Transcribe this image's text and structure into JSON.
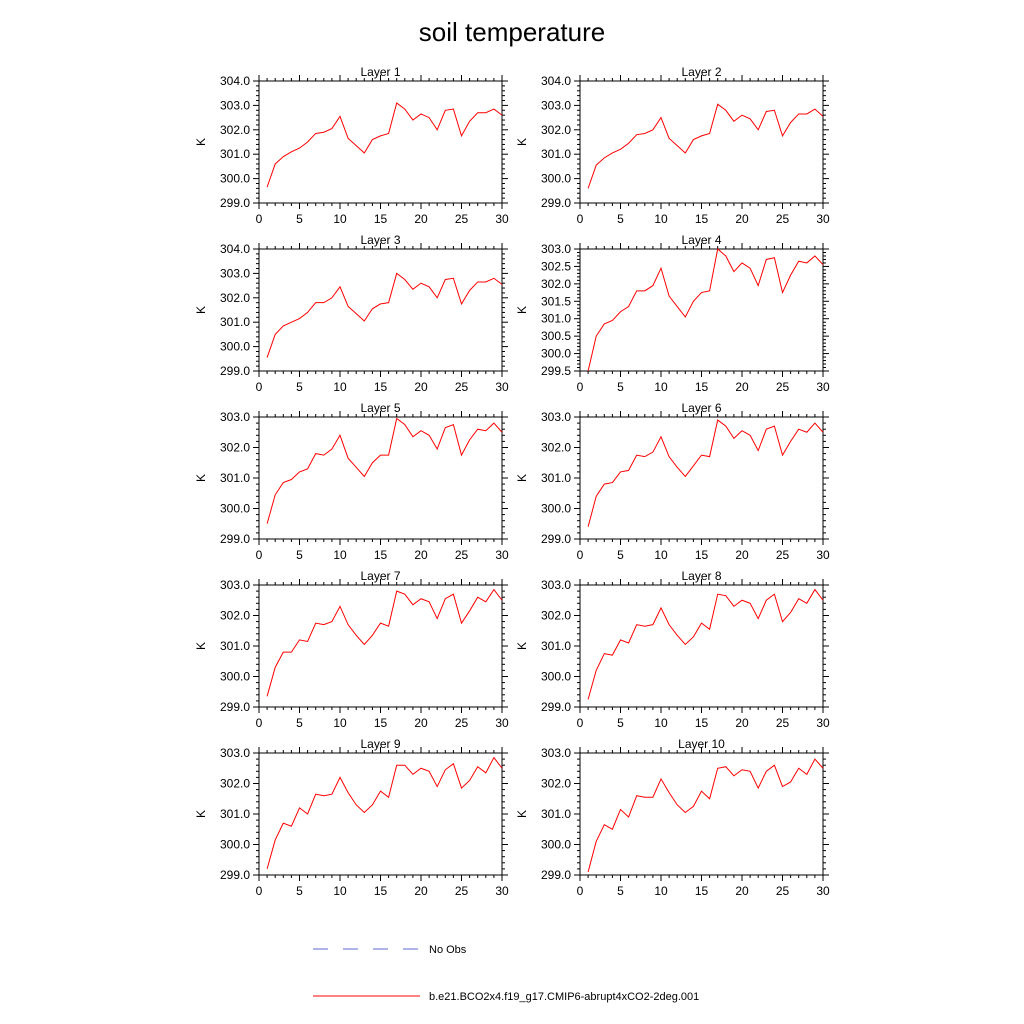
{
  "figure": {
    "title": "soil temperature",
    "legend": [
      {
        "label": "No Obs",
        "color": "#5b6bd1",
        "dash": true
      },
      {
        "label": "b.e21.BCO2x4.f19_g17.CMIP6-abrupt4xCO2-2deg.001",
        "color": "#ff0000",
        "dash": false
      }
    ]
  },
  "chart_data": [
    {
      "type": "line",
      "title": "Layer 1",
      "ylabel": "K",
      "xlim": [
        0,
        30
      ],
      "ylim": [
        299.0,
        304.0
      ],
      "xticks": [
        0,
        5,
        10,
        15,
        20,
        25,
        30
      ],
      "yticks": [
        299.0,
        300.0,
        301.0,
        302.0,
        303.0,
        304.0
      ],
      "series": [
        {
          "color": "#ff0000",
          "x": [
            1,
            2,
            3,
            4,
            5,
            6,
            7,
            8,
            9,
            10,
            11,
            12,
            13,
            14,
            15,
            16,
            17,
            18,
            19,
            20,
            21,
            22,
            23,
            24,
            25,
            26,
            27,
            28,
            29,
            30
          ],
          "y": [
            299.65,
            300.6,
            300.9,
            301.1,
            301.25,
            301.5,
            301.85,
            301.9,
            302.05,
            302.55,
            301.65,
            301.35,
            301.05,
            301.6,
            301.75,
            301.85,
            303.1,
            302.85,
            302.4,
            302.65,
            302.5,
            302.0,
            302.8,
            302.85,
            301.75,
            302.35,
            302.7,
            302.7,
            302.85,
            302.6
          ]
        }
      ]
    },
    {
      "type": "line",
      "title": "Layer 2",
      "ylabel": "K",
      "xlim": [
        0,
        30
      ],
      "ylim": [
        299.0,
        304.0
      ],
      "xticks": [
        0,
        5,
        10,
        15,
        20,
        25,
        30
      ],
      "yticks": [
        299.0,
        300.0,
        301.0,
        302.0,
        303.0,
        304.0
      ],
      "series": [
        {
          "color": "#ff0000",
          "x": [
            1,
            2,
            3,
            4,
            5,
            6,
            7,
            8,
            9,
            10,
            11,
            12,
            13,
            14,
            15,
            16,
            17,
            18,
            19,
            20,
            21,
            22,
            23,
            24,
            25,
            26,
            27,
            28,
            29,
            30
          ],
          "y": [
            299.6,
            300.55,
            300.85,
            301.05,
            301.2,
            301.45,
            301.8,
            301.85,
            302.0,
            302.5,
            301.65,
            301.35,
            301.05,
            301.6,
            301.75,
            301.85,
            303.05,
            302.8,
            302.35,
            302.6,
            302.45,
            302.0,
            302.75,
            302.8,
            301.75,
            302.3,
            302.65,
            302.65,
            302.85,
            302.55
          ]
        }
      ]
    },
    {
      "type": "line",
      "title": "Layer 3",
      "ylabel": "K",
      "xlim": [
        0,
        30
      ],
      "ylim": [
        299.0,
        304.0
      ],
      "xticks": [
        0,
        5,
        10,
        15,
        20,
        25,
        30
      ],
      "yticks": [
        299.0,
        300.0,
        301.0,
        302.0,
        303.0,
        304.0
      ],
      "series": [
        {
          "color": "#ff0000",
          "x": [
            1,
            2,
            3,
            4,
            5,
            6,
            7,
            8,
            9,
            10,
            11,
            12,
            13,
            14,
            15,
            16,
            17,
            18,
            19,
            20,
            21,
            22,
            23,
            24,
            25,
            26,
            27,
            28,
            29,
            30
          ],
          "y": [
            299.55,
            300.5,
            300.85,
            301.0,
            301.15,
            301.4,
            301.8,
            301.8,
            302.0,
            302.45,
            301.65,
            301.35,
            301.05,
            301.55,
            301.75,
            301.8,
            303.0,
            302.75,
            302.35,
            302.6,
            302.45,
            302.0,
            302.75,
            302.8,
            301.75,
            302.3,
            302.65,
            302.65,
            302.8,
            302.55
          ]
        }
      ]
    },
    {
      "type": "line",
      "title": "Layer 4",
      "ylabel": "K",
      "xlim": [
        0,
        30
      ],
      "ylim": [
        299.5,
        303.0
      ],
      "xticks": [
        0,
        5,
        10,
        15,
        20,
        25,
        30
      ],
      "yticks": [
        299.5,
        300.0,
        300.5,
        301.0,
        301.5,
        302.0,
        302.5,
        303.0
      ],
      "series": [
        {
          "color": "#ff0000",
          "x": [
            1,
            2,
            3,
            4,
            5,
            6,
            7,
            8,
            9,
            10,
            11,
            12,
            13,
            14,
            15,
            16,
            17,
            18,
            19,
            20,
            21,
            22,
            23,
            24,
            25,
            26,
            27,
            28,
            29,
            30
          ],
          "y": [
            299.5,
            300.5,
            300.85,
            300.95,
            301.2,
            301.35,
            301.8,
            301.8,
            301.95,
            302.45,
            301.65,
            301.35,
            301.05,
            301.5,
            301.75,
            301.8,
            303.0,
            302.8,
            302.35,
            302.6,
            302.45,
            301.95,
            302.7,
            302.75,
            301.75,
            302.25,
            302.65,
            302.6,
            302.8,
            302.55
          ]
        }
      ]
    },
    {
      "type": "line",
      "title": "Layer 5",
      "ylabel": "K",
      "xlim": [
        0,
        30
      ],
      "ylim": [
        299.0,
        303.0
      ],
      "xticks": [
        0,
        5,
        10,
        15,
        20,
        25,
        30
      ],
      "yticks": [
        299.0,
        300.0,
        301.0,
        302.0,
        303.0
      ],
      "series": [
        {
          "color": "#ff0000",
          "x": [
            1,
            2,
            3,
            4,
            5,
            6,
            7,
            8,
            9,
            10,
            11,
            12,
            13,
            14,
            15,
            16,
            17,
            18,
            19,
            20,
            21,
            22,
            23,
            24,
            25,
            26,
            27,
            28,
            29,
            30
          ],
          "y": [
            299.5,
            300.45,
            300.85,
            300.95,
            301.2,
            301.3,
            301.8,
            301.75,
            301.95,
            302.4,
            301.65,
            301.35,
            301.05,
            301.5,
            301.75,
            301.75,
            302.95,
            302.75,
            302.35,
            302.55,
            302.4,
            301.95,
            302.65,
            302.75,
            301.75,
            302.25,
            302.6,
            302.55,
            302.8,
            302.5
          ]
        }
      ]
    },
    {
      "type": "line",
      "title": "Layer 6",
      "ylabel": "K",
      "xlim": [
        0,
        30
      ],
      "ylim": [
        299.0,
        303.0
      ],
      "xticks": [
        0,
        5,
        10,
        15,
        20,
        25,
        30
      ],
      "yticks": [
        299.0,
        300.0,
        301.0,
        302.0,
        303.0
      ],
      "series": [
        {
          "color": "#ff0000",
          "x": [
            1,
            2,
            3,
            4,
            5,
            6,
            7,
            8,
            9,
            10,
            11,
            12,
            13,
            14,
            15,
            16,
            17,
            18,
            19,
            20,
            21,
            22,
            23,
            24,
            25,
            26,
            27,
            28,
            29,
            30
          ],
          "y": [
            299.4,
            300.4,
            300.8,
            300.85,
            301.2,
            301.25,
            301.75,
            301.7,
            301.85,
            302.35,
            301.7,
            301.35,
            301.05,
            301.4,
            301.75,
            301.7,
            302.9,
            302.7,
            302.3,
            302.55,
            302.4,
            301.9,
            302.6,
            302.7,
            301.75,
            302.2,
            302.6,
            302.5,
            302.8,
            302.5
          ]
        }
      ]
    },
    {
      "type": "line",
      "title": "Layer 7",
      "ylabel": "K",
      "xlim": [
        0,
        30
      ],
      "ylim": [
        299.0,
        303.0
      ],
      "xticks": [
        0,
        5,
        10,
        15,
        20,
        25,
        30
      ],
      "yticks": [
        299.0,
        300.0,
        301.0,
        302.0,
        303.0
      ],
      "series": [
        {
          "color": "#ff0000",
          "x": [
            1,
            2,
            3,
            4,
            5,
            6,
            7,
            8,
            9,
            10,
            11,
            12,
            13,
            14,
            15,
            16,
            17,
            18,
            19,
            20,
            21,
            22,
            23,
            24,
            25,
            26,
            27,
            28,
            29,
            30
          ],
          "y": [
            299.35,
            300.3,
            300.8,
            300.8,
            301.2,
            301.15,
            301.75,
            301.7,
            301.8,
            302.3,
            301.7,
            301.35,
            301.05,
            301.35,
            301.75,
            301.65,
            302.8,
            302.7,
            302.35,
            302.55,
            302.45,
            301.9,
            302.55,
            302.7,
            301.75,
            302.15,
            302.6,
            302.45,
            302.85,
            302.5
          ]
        }
      ]
    },
    {
      "type": "line",
      "title": "Layer 8",
      "ylabel": "K",
      "xlim": [
        0,
        30
      ],
      "ylim": [
        299.0,
        303.0
      ],
      "xticks": [
        0,
        5,
        10,
        15,
        20,
        25,
        30
      ],
      "yticks": [
        299.0,
        300.0,
        301.0,
        302.0,
        303.0
      ],
      "series": [
        {
          "color": "#ff0000",
          "x": [
            1,
            2,
            3,
            4,
            5,
            6,
            7,
            8,
            9,
            10,
            11,
            12,
            13,
            14,
            15,
            16,
            17,
            18,
            19,
            20,
            21,
            22,
            23,
            24,
            25,
            26,
            27,
            28,
            29,
            30
          ],
          "y": [
            299.25,
            300.2,
            300.75,
            300.7,
            301.2,
            301.1,
            301.7,
            301.65,
            301.7,
            302.25,
            301.7,
            301.35,
            301.05,
            301.3,
            301.75,
            301.55,
            302.7,
            302.65,
            302.3,
            302.5,
            302.4,
            301.9,
            302.5,
            302.7,
            301.8,
            302.1,
            302.55,
            302.4,
            302.85,
            302.5
          ]
        }
      ]
    },
    {
      "type": "line",
      "title": "Layer 9",
      "ylabel": "K",
      "xlim": [
        0,
        30
      ],
      "ylim": [
        299.0,
        303.0
      ],
      "xticks": [
        0,
        5,
        10,
        15,
        20,
        25,
        30
      ],
      "yticks": [
        299.0,
        300.0,
        301.0,
        302.0,
        303.0
      ],
      "series": [
        {
          "color": "#ff0000",
          "x": [
            1,
            2,
            3,
            4,
            5,
            6,
            7,
            8,
            9,
            10,
            11,
            12,
            13,
            14,
            15,
            16,
            17,
            18,
            19,
            20,
            21,
            22,
            23,
            24,
            25,
            26,
            27,
            28,
            29,
            30
          ],
          "y": [
            299.2,
            300.15,
            300.7,
            300.6,
            301.2,
            301.0,
            301.65,
            301.6,
            301.65,
            302.2,
            301.7,
            301.3,
            301.05,
            301.3,
            301.75,
            301.55,
            302.6,
            302.6,
            302.3,
            302.5,
            302.4,
            301.9,
            302.45,
            302.65,
            301.85,
            302.1,
            302.55,
            302.35,
            302.85,
            302.5
          ]
        }
      ]
    },
    {
      "type": "line",
      "title": "Layer 10",
      "ylabel": "K",
      "xlim": [
        0,
        30
      ],
      "ylim": [
        299.0,
        303.0
      ],
      "xticks": [
        0,
        5,
        10,
        15,
        20,
        25,
        30
      ],
      "yticks": [
        299.0,
        300.0,
        301.0,
        302.0,
        303.0
      ],
      "series": [
        {
          "color": "#ff0000",
          "x": [
            1,
            2,
            3,
            4,
            5,
            6,
            7,
            8,
            9,
            10,
            11,
            12,
            13,
            14,
            15,
            16,
            17,
            18,
            19,
            20,
            21,
            22,
            23,
            24,
            25,
            26,
            27,
            28,
            29,
            30
          ],
          "y": [
            299.1,
            300.1,
            300.65,
            300.5,
            301.15,
            300.9,
            301.6,
            301.55,
            301.55,
            302.15,
            301.7,
            301.3,
            301.05,
            301.25,
            301.75,
            301.5,
            302.5,
            302.55,
            302.25,
            302.45,
            302.4,
            301.85,
            302.4,
            302.6,
            301.9,
            302.05,
            302.5,
            302.3,
            302.8,
            302.5
          ]
        }
      ]
    }
  ]
}
